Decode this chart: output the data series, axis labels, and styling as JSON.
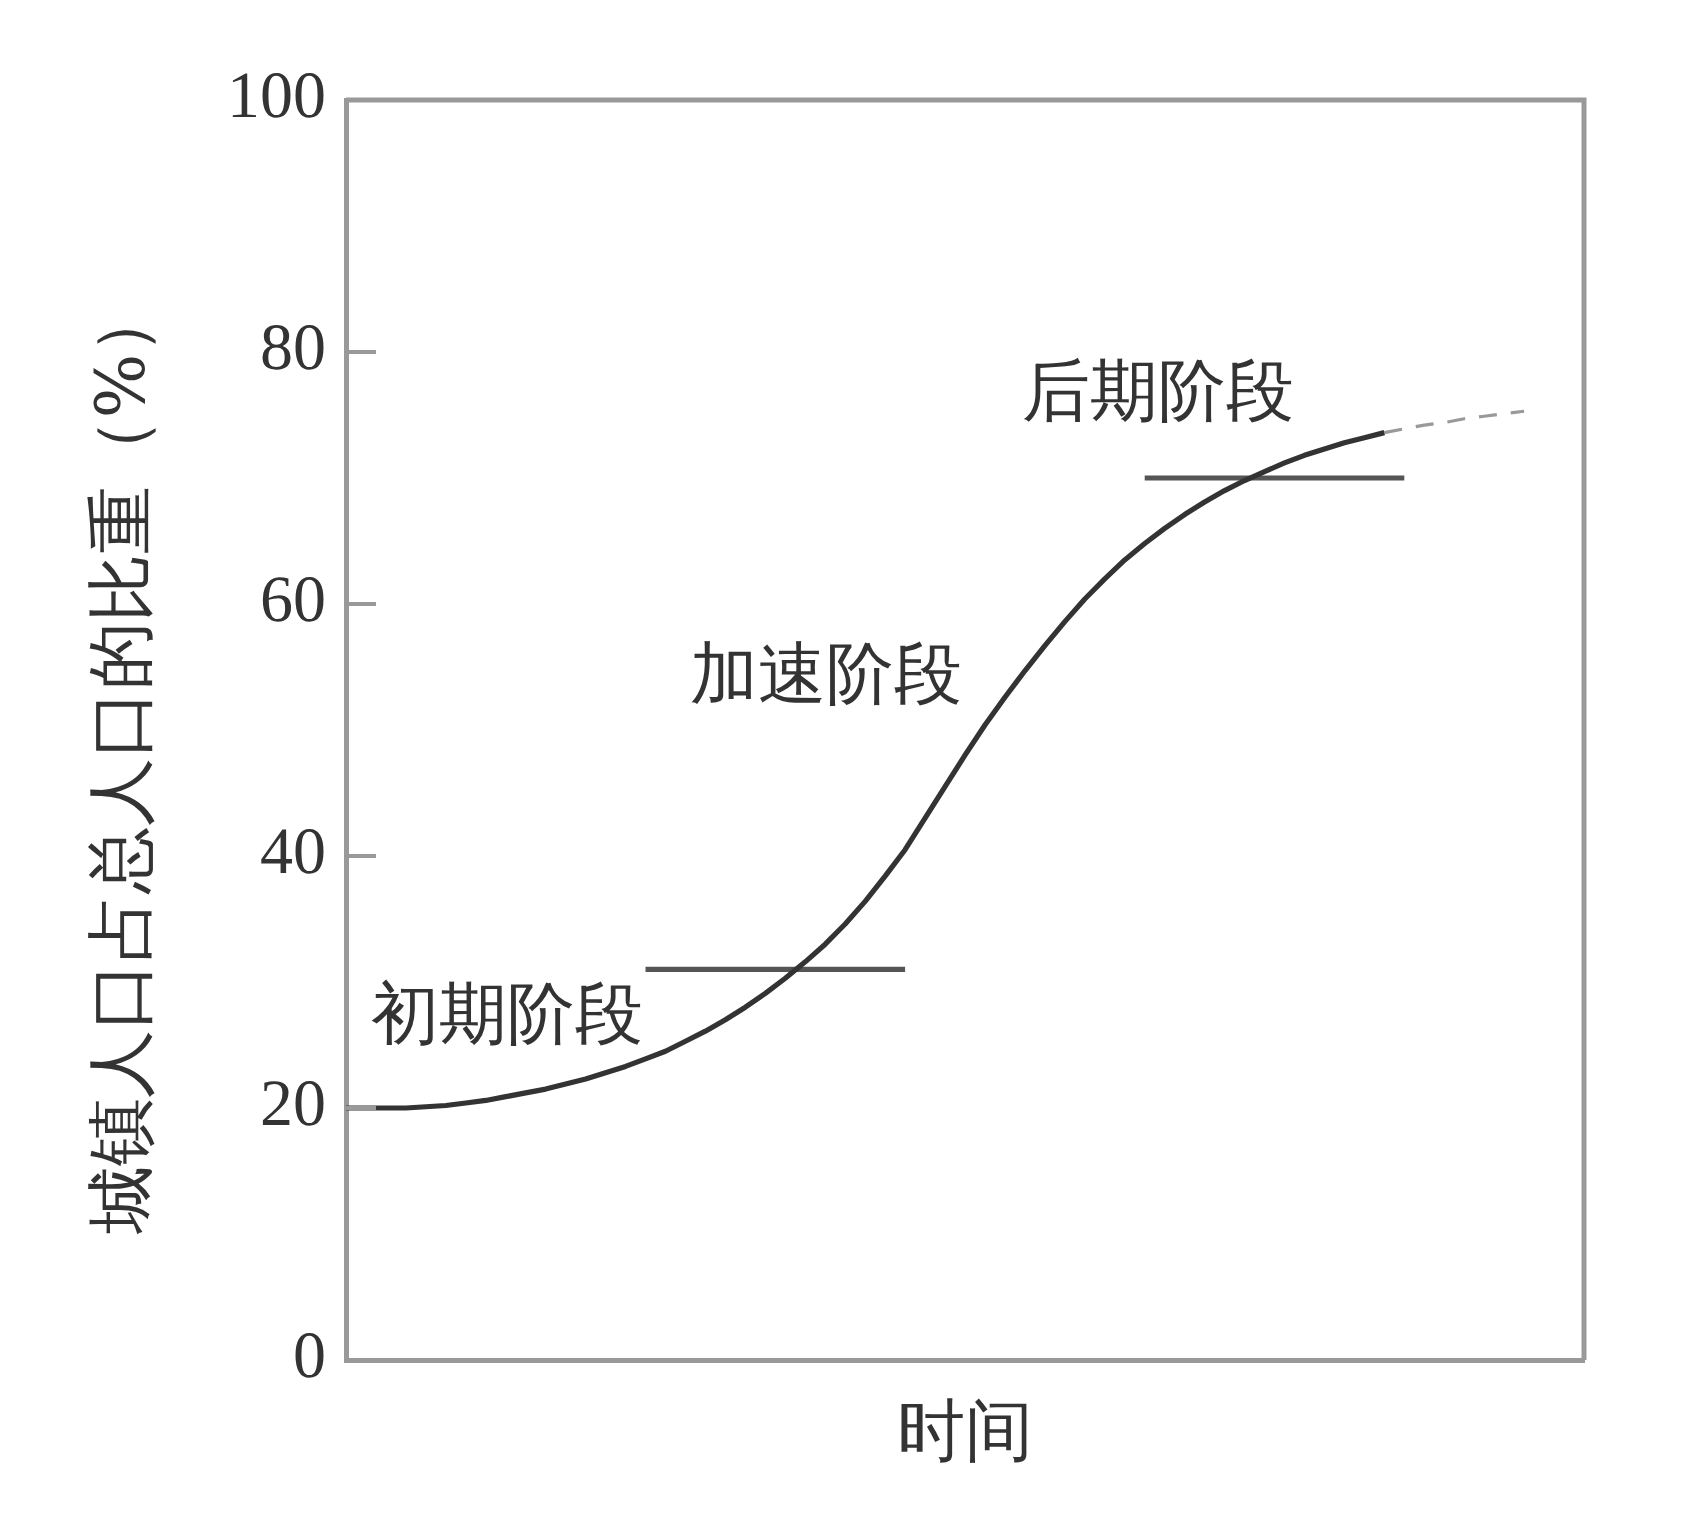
{
  "chart_data": {
    "type": "line",
    "xlabel": "时间",
    "ylabel": "城镇人口占总人口的比重（%）",
    "annotations": [
      "初期阶段",
      "加速阶段",
      "后期阶段"
    ],
    "categories": [
      null,
      null,
      null,
      null,
      null,
      null,
      null,
      null,
      null,
      null,
      null,
      null,
      null,
      null,
      null,
      null,
      null,
      null,
      null,
      null,
      null,
      null,
      null,
      null,
      null,
      null,
      null,
      null,
      null,
      null,
      null,
      null,
      null,
      null,
      null,
      null,
      null,
      null,
      null,
      null,
      null,
      null,
      null,
      null,
      null,
      null,
      null,
      null,
      null,
      null,
      null,
      null,
      null,
      null,
      null,
      null,
      null,
      null,
      null,
      null,
      null,
      null,
      null
    ],
    "series": [
      {
        "color": "#333333",
        "values": [
          20,
          20,
          20,
          20,
          20.1,
          20.2,
          20.4,
          20.6,
          20.9,
          21.2,
          21.5,
          21.9,
          22.3,
          22.8,
          23.3,
          23.9,
          24.5,
          25.3,
          26.1,
          27,
          28,
          29.1,
          30.3,
          31.6,
          33,
          34.6,
          36.4,
          38.4,
          40.5,
          43,
          45.5,
          48,
          50.4,
          52.6,
          54.7,
          56.7,
          58.6,
          60.4,
          62,
          63.5,
          64.8,
          66,
          67.1,
          68.1,
          69,
          69.8,
          70.5,
          71.2,
          71.8,
          72.3,
          72.8,
          73.2,
          73.6,
          null,
          null,
          null,
          null,
          null,
          null,
          null,
          null,
          null,
          null
        ]
      },
      {
        "color": "#999999",
        "line_style": "dashed",
        "values": [
          null,
          null,
          null,
          null,
          null,
          null,
          null,
          null,
          null,
          null,
          null,
          null,
          null,
          null,
          null,
          null,
          null,
          null,
          null,
          null,
          null,
          null,
          null,
          null,
          null,
          null,
          null,
          null,
          null,
          null,
          null,
          null,
          null,
          null,
          null,
          null,
          null,
          null,
          null,
          null,
          null,
          null,
          null,
          null,
          null,
          null,
          null,
          null,
          null,
          null,
          null,
          null,
          73.6,
          73.9,
          74.2,
          74.4,
          74.7,
          74.9,
          75.1,
          75.3,
          null,
          null,
          null
        ]
      },
      {
        "color": "#555555",
        "values": [
          null,
          null,
          null,
          null,
          null,
          null,
          null,
          null,
          null,
          null,
          null,
          null,
          null,
          null,
          null,
          31,
          31,
          31,
          31,
          31,
          31,
          31,
          31,
          31,
          31,
          31,
          31,
          31,
          31,
          null,
          null,
          null,
          null,
          null,
          null,
          null,
          null,
          null,
          null,
          null,
          null,
          null,
          null,
          null,
          null,
          null,
          null,
          null,
          null,
          null,
          null,
          null,
          null,
          null,
          null,
          null,
          null,
          null,
          null,
          null,
          null,
          null,
          null
        ]
      },
      {
        "color": "#555555",
        "values": [
          null,
          null,
          null,
          null,
          null,
          null,
          null,
          null,
          null,
          null,
          null,
          null,
          null,
          null,
          null,
          null,
          null,
          null,
          null,
          null,
          null,
          null,
          null,
          null,
          null,
          null,
          null,
          null,
          null,
          null,
          null,
          null,
          null,
          null,
          null,
          null,
          null,
          null,
          null,
          null,
          70,
          70,
          70,
          70,
          70,
          70,
          70,
          70,
          70,
          70,
          70,
          70,
          70,
          70,
          null,
          null,
          null,
          null,
          null,
          null,
          null,
          null,
          null
        ]
      }
    ],
    "ylim": [
      0,
      100
    ],
    "yticks": [
      0,
      20,
      40,
      60,
      80,
      100
    ],
    "grid": false,
    "legend": false,
    "marker": "none",
    "tick_labels": "y"
  }
}
